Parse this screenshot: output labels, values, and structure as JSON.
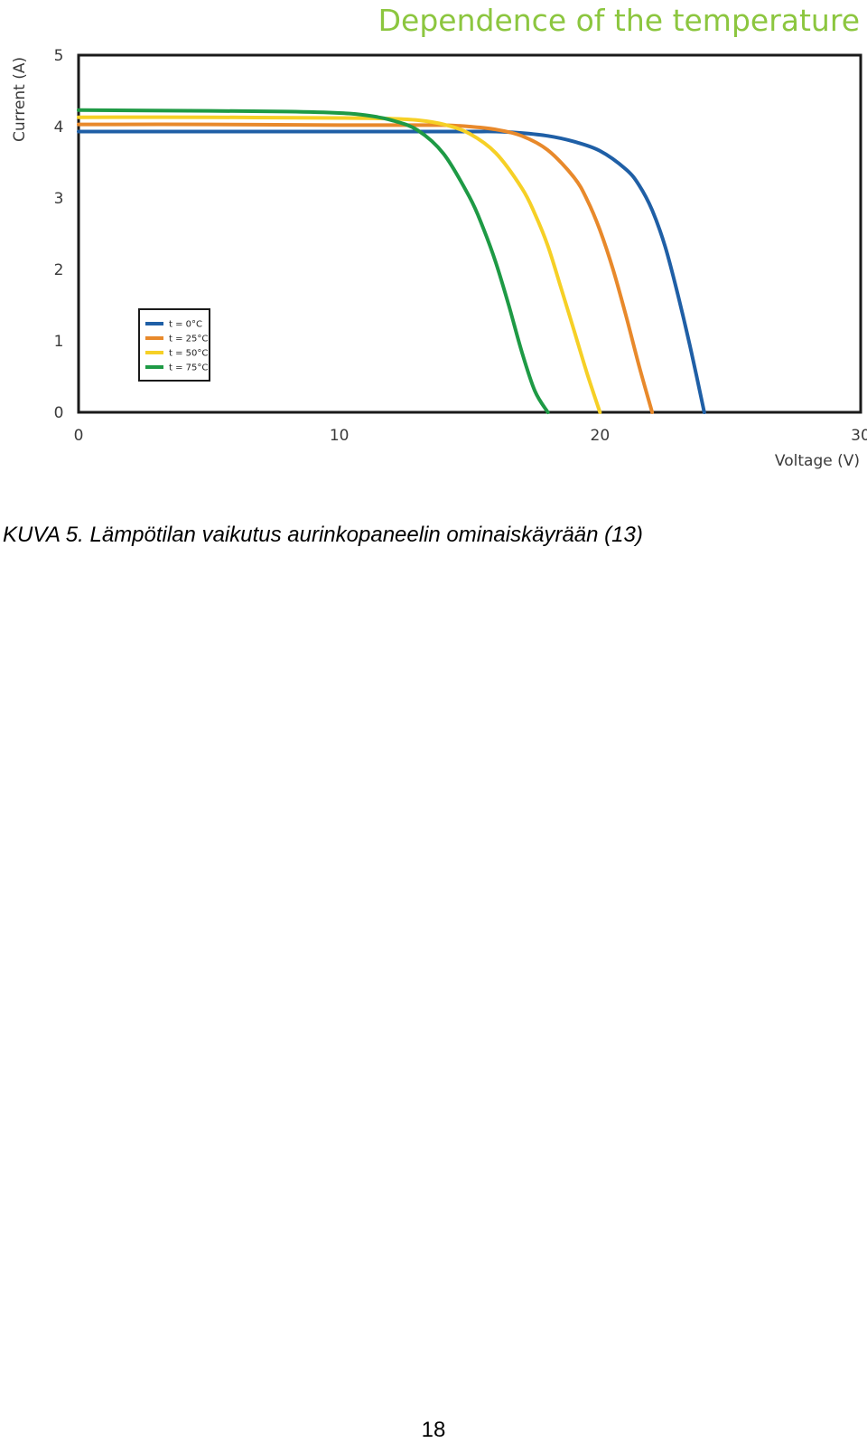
{
  "chart_data": {
    "type": "line",
    "title": "Dependence of the temperature",
    "xlabel": "Voltage (V)",
    "ylabel": "Current (A)",
    "xlim": [
      0,
      30
    ],
    "ylim": [
      0,
      5
    ],
    "x_ticks": [
      "0",
      "10",
      "20",
      "30"
    ],
    "y_ticks": [
      "0",
      "1",
      "2",
      "3",
      "4",
      "5"
    ],
    "grid": false,
    "legend_position": "bottom-left",
    "series": [
      {
        "name": "t = 0°C",
        "color": "#1f5fa6",
        "x": [
          0,
          5,
          10,
          13,
          15,
          16,
          17,
          18,
          19,
          20,
          21,
          21.5,
          22,
          22.5,
          23,
          23.5,
          24
        ],
        "y": [
          3.93,
          3.93,
          3.93,
          3.93,
          3.93,
          3.93,
          3.91,
          3.87,
          3.79,
          3.66,
          3.4,
          3.18,
          2.83,
          2.32,
          1.63,
          0.85,
          0.0
        ]
      },
      {
        "name": "t = 25°C",
        "color": "#e8892b",
        "x": [
          0,
          5,
          10,
          13,
          14,
          15,
          16,
          17,
          18,
          19,
          19.5,
          20,
          20.5,
          21,
          21.5,
          22
        ],
        "y": [
          4.03,
          4.03,
          4.02,
          4.02,
          4.02,
          4.0,
          3.96,
          3.87,
          3.67,
          3.29,
          2.98,
          2.55,
          2.0,
          1.35,
          0.65,
          0.0
        ]
      },
      {
        "name": "t = 50°C",
        "color": "#f6d026",
        "x": [
          0,
          5,
          10,
          12,
          13,
          14,
          15,
          16,
          17,
          17.5,
          18,
          18.5,
          19,
          19.5,
          20
        ],
        "y": [
          4.13,
          4.13,
          4.12,
          4.11,
          4.09,
          4.03,
          3.9,
          3.63,
          3.14,
          2.78,
          2.33,
          1.75,
          1.15,
          0.55,
          0.0
        ]
      },
      {
        "name": "t = 75°C",
        "color": "#1e9a45",
        "x": [
          0,
          5,
          8,
          10,
          11,
          12,
          13,
          14,
          15,
          15.5,
          16,
          16.5,
          17,
          17.5,
          18
        ],
        "y": [
          4.23,
          4.22,
          4.21,
          4.19,
          4.16,
          4.09,
          3.95,
          3.62,
          3.01,
          2.6,
          2.1,
          1.5,
          0.85,
          0.3,
          0.0
        ]
      }
    ]
  },
  "caption": "KUVA 5. Lämpötilan vaikutus aurinkopaneelin ominaiskäyrään (13)",
  "page_number": "18"
}
